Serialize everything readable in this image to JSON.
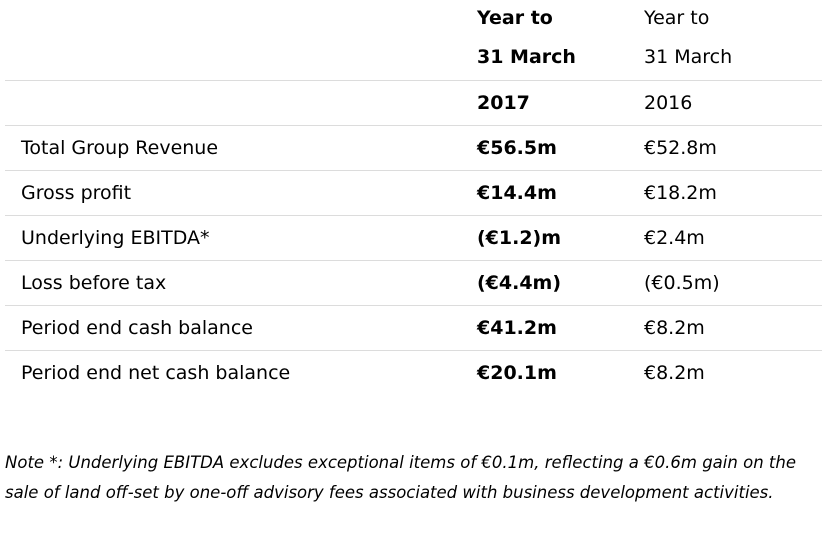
{
  "table": {
    "header": {
      "col2017": [
        "Year to",
        "31 March",
        "2017"
      ],
      "col2016": [
        "Year to",
        "31 March",
        "2016"
      ]
    },
    "rows": [
      {
        "label": "Total Group Revenue",
        "v2017": "€56.5m",
        "v2016": "€52.8m"
      },
      {
        "label": "Gross profit",
        "v2017": "€14.4m",
        "v2016": "€18.2m"
      },
      {
        "label": "Underlying EBITDA*",
        "v2017": "(€1.2)m",
        "v2016": "€2.4m"
      },
      {
        "label": "Loss before tax",
        "v2017": "(€4.4m)",
        "v2016": "(€0.5m)"
      },
      {
        "label": "Period end cash balance",
        "v2017": "€41.2m",
        "v2016": "€8.2m"
      },
      {
        "label": "Period end net cash balance",
        "v2017": "€20.1m",
        "v2016": "€8.2m"
      }
    ]
  },
  "note": "Note *:  Underlying EBITDA excludes exceptional items of €0.1m, reflecting a €0.6m gain on the sale of land off-set by one-off advisory fees associated with business development activities."
}
